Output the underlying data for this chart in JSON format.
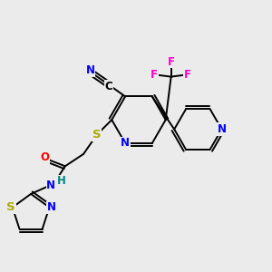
{
  "background_color": "#ebebeb",
  "colors": {
    "C": "#000000",
    "N": "#0000ff",
    "S": "#aaaa00",
    "O": "#ff0000",
    "F": "#ff00cc",
    "H": "#008888",
    "bond": "#000000"
  },
  "bond_lw": 1.4,
  "font_size": 8.5
}
